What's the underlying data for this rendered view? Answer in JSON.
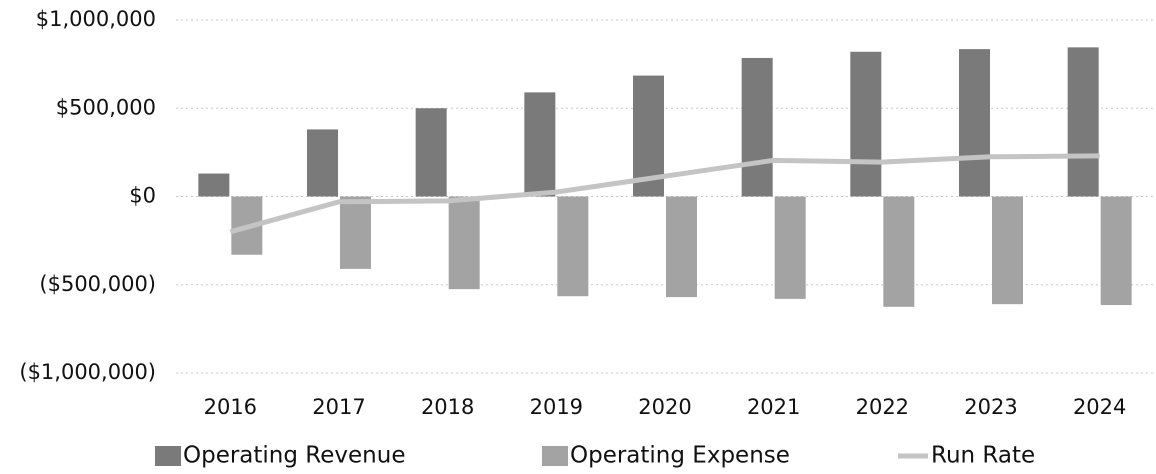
{
  "chart_data": {
    "type": "bar_line",
    "categories": [
      "2016",
      "2017",
      "2018",
      "2019",
      "2020",
      "2021",
      "2022",
      "2023",
      "2024"
    ],
    "series": [
      {
        "name": "Operating Revenue",
        "type": "bar",
        "color": "#7a7a7a",
        "values": [
          130000,
          380000,
          500000,
          590000,
          685000,
          785000,
          820000,
          835000,
          845000
        ]
      },
      {
        "name": "Operating Expense",
        "type": "bar",
        "color": "#a3a3a3",
        "values": [
          -330000,
          -410000,
          -525000,
          -565000,
          -570000,
          -580000,
          -625000,
          -610000,
          -615000
        ]
      },
      {
        "name": "Run Rate",
        "type": "line",
        "color": "#c4c4c4",
        "values": [
          -200000,
          -30000,
          -25000,
          25000,
          115000,
          205000,
          195000,
          225000,
          230000
        ]
      }
    ],
    "ylim": [
      -1000000,
      1000000
    ],
    "yticks": [
      {
        "value": -1000000,
        "label": "($1,000,000)"
      },
      {
        "value": -500000,
        "label": "($500,000)"
      },
      {
        "value": 0,
        "label": "$0"
      },
      {
        "value": 500000,
        "label": "$500,000"
      },
      {
        "value": 1000000,
        "label": "$1,000,000"
      }
    ],
    "grid": true,
    "legend": "bottom"
  }
}
